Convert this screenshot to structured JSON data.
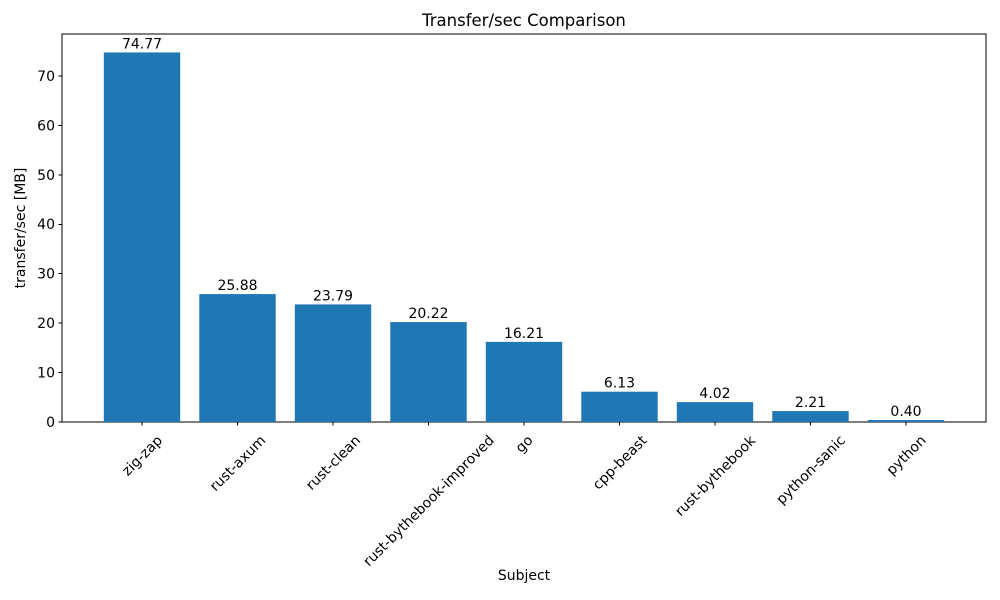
{
  "chart_data": {
    "type": "bar",
    "title": "Transfer/sec Comparison",
    "xlabel": "Subject",
    "ylabel": "transfer/sec [MB]",
    "categories": [
      "zig-zap",
      "rust-axum",
      "rust-clean",
      "rust-bythebook-improved",
      "go",
      "cpp-beast",
      "rust-bythebook",
      "python-sanic",
      "python"
    ],
    "values": [
      74.77,
      25.88,
      23.79,
      20.22,
      16.21,
      6.13,
      4.02,
      2.21,
      0.4
    ],
    "value_labels": [
      "74.77",
      "25.88",
      "23.79",
      "20.22",
      "16.21",
      "6.13",
      "4.02",
      "2.21",
      "0.40"
    ],
    "yticks": [
      0,
      10,
      20,
      30,
      40,
      50,
      60,
      70
    ],
    "ylim": [
      0,
      78.5
    ],
    "xtick_rotation": 45,
    "grid": false,
    "legend_position": "none",
    "bar_color": "#1f77b4",
    "axis_color": "#000000",
    "text_color": "#000000",
    "background_color": "#ffffff"
  }
}
